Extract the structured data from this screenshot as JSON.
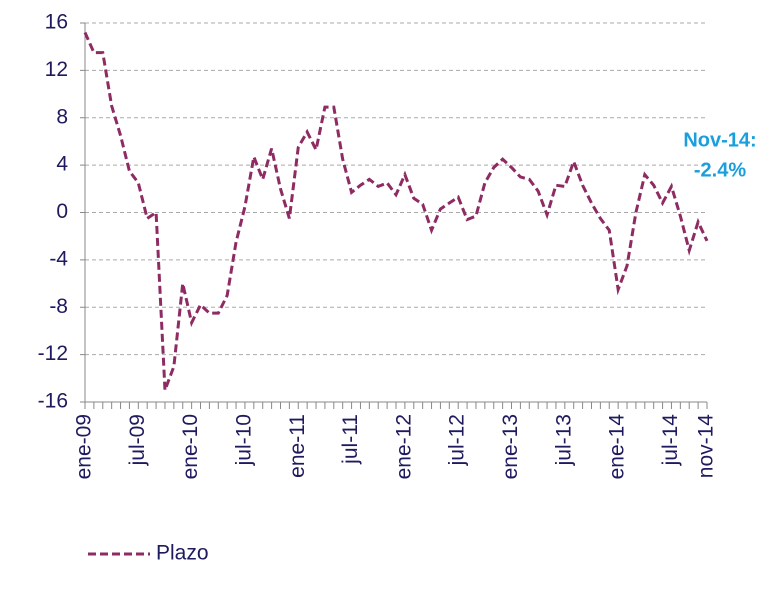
{
  "chart_data": {
    "type": "line",
    "categories": [
      "ene-09",
      null,
      null,
      null,
      null,
      null,
      "jul-09",
      null,
      null,
      null,
      null,
      null,
      "ene-10",
      null,
      null,
      null,
      null,
      null,
      "jul-10",
      null,
      null,
      null,
      null,
      null,
      "ene-11",
      null,
      null,
      null,
      null,
      null,
      "jul-11",
      null,
      null,
      null,
      null,
      null,
      "ene-12",
      null,
      null,
      null,
      null,
      null,
      "jul-12",
      null,
      null,
      null,
      null,
      null,
      "ene-13",
      null,
      null,
      null,
      null,
      null,
      "jul-13",
      null,
      null,
      null,
      null,
      null,
      "ene-14",
      null,
      null,
      null,
      null,
      null,
      "jul-14",
      null,
      null,
      null,
      "nov-14"
    ],
    "series": [
      {
        "name": "Plazo",
        "color": "#8e2b63",
        "values": [
          15.2,
          13.5,
          13.5,
          9,
          6.5,
          3.5,
          2.5,
          -0.5,
          0,
          -15,
          -13,
          -6,
          -9.3,
          -7.8,
          -8.5,
          -8.5,
          -7,
          -2.5,
          0.5,
          4.7,
          2.8,
          5.4,
          2,
          -0.5,
          5.5,
          6.8,
          5.3,
          8.9,
          8.9,
          4.5,
          1.7,
          2.3,
          2.8,
          2.2,
          2.5,
          1.5,
          3.2,
          1.2,
          0.7,
          -1.5,
          0.3,
          0.8,
          1.3,
          -0.6,
          -0.3,
          2.5,
          3.8,
          4.5,
          3.8,
          3,
          2.8,
          1.8,
          -0.2,
          2.3,
          2.2,
          4.3,
          2.3,
          0.8,
          -0.5,
          -1.5,
          -6.5,
          -4.5,
          0,
          3.2,
          2.3,
          0.8,
          2.2,
          -0.3,
          -3.2,
          -0.8,
          -2.4
        ]
      }
    ],
    "ylim": [
      -16,
      16
    ],
    "yticks": [
      -16,
      -12,
      -8,
      -4,
      0,
      4,
      8,
      12,
      16
    ],
    "grid": true,
    "annotation": [
      "Nov-14:",
      "-2.4%"
    ],
    "annotation_color": "#1a9fdc"
  }
}
